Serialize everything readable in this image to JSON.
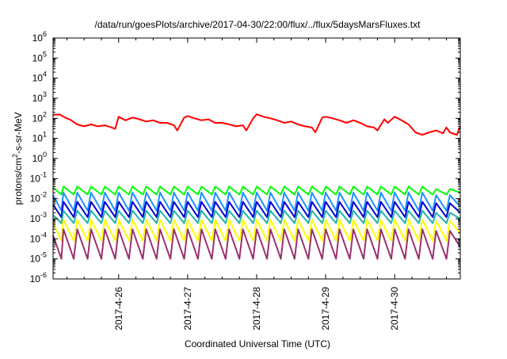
{
  "chart_data": {
    "type": "line",
    "title": "/data/run/goesPlots/archive/2017-04-30/22:00/flux/../flux/5daysMarsFluxes.txt",
    "xlabel": "Coordinated Universal Time (UTC)",
    "ylabel": "protons/cm²-s-sr-MeV",
    "ylabel_parts": [
      "protons/cm",
      "2",
      "-s-sr-MeV"
    ],
    "xscale": "linear",
    "yscale": "log",
    "xlim": [
      25.05,
      30.95
    ],
    "ylim": [
      -6,
      6
    ],
    "x_unit": "day of April 2017",
    "x_ticks": [
      {
        "x": 26,
        "label": "2017-4-26"
      },
      {
        "x": 27,
        "label": "2017-4-27"
      },
      {
        "x": 28,
        "label": "2017-4-28"
      },
      {
        "x": 29,
        "label": "2017-4-29"
      },
      {
        "x": 30,
        "label": "2017-4-30"
      }
    ],
    "y_ticks": [
      {
        "exp": -6,
        "base": "10",
        "sup": "-6"
      },
      {
        "exp": -5,
        "base": "10",
        "sup": "-5"
      },
      {
        "exp": -4,
        "base": "10",
        "sup": "-4"
      },
      {
        "exp": -3,
        "base": "10",
        "sup": "-3"
      },
      {
        "exp": -2,
        "base": "10",
        "sup": "-2"
      },
      {
        "exp": -1,
        "base": "10",
        "sup": "-1"
      },
      {
        "exp": 0,
        "base": "10",
        "sup": "0"
      },
      {
        "exp": 1,
        "base": "10",
        "sup": "1"
      },
      {
        "exp": 2,
        "base": "10",
        "sup": "2"
      },
      {
        "exp": 3,
        "base": "10",
        "sup": "3"
      },
      {
        "exp": 4,
        "base": "10",
        "sup": "4"
      },
      {
        "exp": 5,
        "base": "10",
        "sup": "5"
      },
      {
        "exp": 6,
        "base": "10",
        "sup": "6"
      }
    ],
    "grid": false,
    "legend": "none",
    "series": [
      {
        "color": "#ff0000",
        "x": [
          25.05,
          25.15,
          25.2,
          25.25,
          25.3,
          25.4,
          25.5,
          25.6,
          25.7,
          25.8,
          25.9,
          25.95,
          26.0,
          26.1,
          26.2,
          26.3,
          26.4,
          26.5,
          26.6,
          26.7,
          26.8,
          26.85,
          26.95,
          27.0,
          27.1,
          27.2,
          27.3,
          27.4,
          27.5,
          27.6,
          27.7,
          27.8,
          27.85,
          27.95,
          28.0,
          28.1,
          28.2,
          28.3,
          28.4,
          28.5,
          28.6,
          28.7,
          28.8,
          28.85,
          28.95,
          29.0,
          29.1,
          29.2,
          29.3,
          29.4,
          29.5,
          29.6,
          29.7,
          29.75,
          29.85,
          29.9,
          30.0,
          30.1,
          30.2,
          30.3,
          30.4,
          30.5,
          30.6,
          30.7,
          30.75,
          30.8,
          30.9,
          30.95
        ],
        "y": [
          150,
          155,
          120,
          100,
          85,
          50,
          40,
          50,
          40,
          45,
          35,
          30,
          120,
          80,
          110,
          90,
          70,
          80,
          60,
          60,
          45,
          25,
          110,
          130,
          100,
          80,
          90,
          60,
          60,
          50,
          40,
          45,
          25,
          100,
          160,
          120,
          100,
          80,
          60,
          70,
          50,
          40,
          35,
          20,
          110,
          120,
          100,
          80,
          60,
          80,
          60,
          40,
          35,
          25,
          90,
          60,
          120,
          80,
          50,
          20,
          15,
          20,
          25,
          18,
          35,
          20,
          15,
          40
        ]
      },
      {
        "color": "#00ff00",
        "x": [
          25.05,
          25.17,
          25.2,
          25.35,
          25.4,
          25.55,
          25.6,
          25.75,
          25.8,
          25.95,
          26.0,
          26.15,
          26.2,
          26.35,
          26.4,
          26.55,
          26.6,
          26.75,
          26.8,
          26.95,
          27.0,
          27.15,
          27.2,
          27.35,
          27.4,
          27.55,
          27.6,
          27.75,
          27.8,
          27.95,
          28.0,
          28.15,
          28.2,
          28.35,
          28.4,
          28.55,
          28.6,
          28.75,
          28.8,
          28.95,
          29.0,
          29.15,
          29.2,
          29.35,
          29.4,
          29.55,
          29.6,
          29.75,
          29.8,
          29.95,
          30.0,
          30.15,
          30.2,
          30.35,
          30.4,
          30.55,
          30.6,
          30.75,
          30.8,
          30.95
        ],
        "y": [
          0.035,
          0.016,
          0.04,
          0.016,
          0.04,
          0.016,
          0.04,
          0.016,
          0.04,
          0.016,
          0.04,
          0.016,
          0.04,
          0.016,
          0.04,
          0.016,
          0.04,
          0.016,
          0.04,
          0.016,
          0.04,
          0.016,
          0.04,
          0.016,
          0.04,
          0.016,
          0.04,
          0.016,
          0.04,
          0.016,
          0.04,
          0.016,
          0.04,
          0.016,
          0.04,
          0.016,
          0.04,
          0.016,
          0.04,
          0.016,
          0.04,
          0.016,
          0.04,
          0.016,
          0.04,
          0.016,
          0.04,
          0.016,
          0.04,
          0.016,
          0.04,
          0.016,
          0.04,
          0.016,
          0.04,
          0.016,
          0.03,
          0.016,
          0.03,
          0.02
        ]
      },
      {
        "color": "#1e90ff",
        "x": [
          25.05,
          25.17,
          25.2,
          25.35,
          25.4,
          25.55,
          25.6,
          25.75,
          25.8,
          25.95,
          26.0,
          26.15,
          26.2,
          26.35,
          26.4,
          26.55,
          26.6,
          26.75,
          26.8,
          26.95,
          27.0,
          27.15,
          27.2,
          27.35,
          27.4,
          27.55,
          27.6,
          27.75,
          27.8,
          27.95,
          28.0,
          28.15,
          28.2,
          28.35,
          28.4,
          28.55,
          28.6,
          28.75,
          28.8,
          28.95,
          29.0,
          29.15,
          29.2,
          29.35,
          29.4,
          29.55,
          29.6,
          29.75,
          29.8,
          29.95,
          30.0,
          30.15,
          30.2,
          30.35,
          30.4,
          30.55,
          30.6,
          30.75,
          30.8,
          30.95
        ],
        "y": [
          0.015,
          0.0025,
          0.02,
          0.0025,
          0.02,
          0.0025,
          0.02,
          0.0025,
          0.02,
          0.0025,
          0.02,
          0.0025,
          0.02,
          0.0025,
          0.02,
          0.0025,
          0.02,
          0.0025,
          0.02,
          0.0025,
          0.02,
          0.0025,
          0.02,
          0.0025,
          0.02,
          0.0025,
          0.02,
          0.0025,
          0.02,
          0.0025,
          0.02,
          0.0025,
          0.02,
          0.0025,
          0.02,
          0.0025,
          0.02,
          0.0025,
          0.02,
          0.0025,
          0.02,
          0.0025,
          0.02,
          0.0025,
          0.02,
          0.0025,
          0.02,
          0.0025,
          0.02,
          0.0025,
          0.02,
          0.0025,
          0.02,
          0.0025,
          0.02,
          0.0025,
          0.015,
          0.0025,
          0.015,
          0.004
        ]
      },
      {
        "color": "#0000cd",
        "x": [
          25.05,
          25.17,
          25.2,
          25.35,
          25.4,
          25.55,
          25.6,
          25.75,
          25.8,
          25.95,
          26.0,
          26.15,
          26.2,
          26.35,
          26.4,
          26.55,
          26.6,
          26.75,
          26.8,
          26.95,
          27.0,
          27.15,
          27.2,
          27.35,
          27.4,
          27.55,
          27.6,
          27.75,
          27.8,
          27.95,
          28.0,
          28.15,
          28.2,
          28.35,
          28.4,
          28.55,
          28.6,
          28.75,
          28.8,
          28.95,
          29.0,
          29.15,
          29.2,
          29.35,
          29.4,
          29.55,
          29.6,
          29.75,
          29.8,
          29.95,
          30.0,
          30.15,
          30.2,
          30.35,
          30.4,
          30.55,
          30.6,
          30.75,
          30.8,
          30.95
        ],
        "y": [
          0.005,
          0.0012,
          0.007,
          0.0012,
          0.007,
          0.0012,
          0.007,
          0.0012,
          0.007,
          0.0012,
          0.007,
          0.0012,
          0.007,
          0.0012,
          0.007,
          0.0012,
          0.007,
          0.0012,
          0.007,
          0.0012,
          0.007,
          0.0012,
          0.007,
          0.0012,
          0.007,
          0.0012,
          0.007,
          0.0012,
          0.007,
          0.0012,
          0.007,
          0.0012,
          0.007,
          0.0012,
          0.007,
          0.0012,
          0.007,
          0.0012,
          0.007,
          0.0012,
          0.007,
          0.0012,
          0.007,
          0.0012,
          0.007,
          0.0012,
          0.007,
          0.0012,
          0.007,
          0.0012,
          0.007,
          0.0012,
          0.007,
          0.0012,
          0.007,
          0.0012,
          0.006,
          0.0012,
          0.006,
          0.002
        ]
      },
      {
        "color": "#20b2aa",
        "x": [
          25.05,
          25.17,
          25.2,
          25.35,
          25.4,
          25.55,
          25.6,
          25.75,
          25.8,
          25.95,
          26.0,
          26.15,
          26.2,
          26.35,
          26.4,
          26.55,
          26.6,
          26.75,
          26.8,
          26.95,
          27.0,
          27.15,
          27.2,
          27.35,
          27.4,
          27.55,
          27.6,
          27.75,
          27.8,
          27.95,
          28.0,
          28.15,
          28.2,
          28.35,
          28.4,
          28.55,
          28.6,
          28.75,
          28.8,
          28.95,
          29.0,
          29.15,
          29.2,
          29.35,
          29.4,
          29.55,
          29.6,
          29.75,
          29.8,
          29.95,
          30.0,
          30.15,
          30.2,
          30.35,
          30.4,
          30.55,
          30.6,
          30.75,
          30.8,
          30.95
        ],
        "y": [
          0.0015,
          0.0006,
          0.0025,
          0.0006,
          0.0025,
          0.0006,
          0.0025,
          0.0006,
          0.0025,
          0.0006,
          0.0025,
          0.0006,
          0.0025,
          0.0006,
          0.0025,
          0.0006,
          0.0025,
          0.0006,
          0.0025,
          0.0006,
          0.0025,
          0.0006,
          0.0025,
          0.0006,
          0.0025,
          0.0006,
          0.0025,
          0.0006,
          0.0025,
          0.0006,
          0.0025,
          0.0006,
          0.0025,
          0.0006,
          0.0025,
          0.0006,
          0.0025,
          0.0006,
          0.0025,
          0.0006,
          0.0025,
          0.0006,
          0.0025,
          0.0006,
          0.0025,
          0.0006,
          0.0025,
          0.0006,
          0.0025,
          0.0006,
          0.0025,
          0.0006,
          0.0025,
          0.0006,
          0.0025,
          0.0006,
          0.002,
          0.0006,
          0.002,
          0.001
        ]
      },
      {
        "color": "#ffff00",
        "x": [
          25.05,
          25.17,
          25.2,
          25.35,
          25.4,
          25.55,
          25.6,
          25.75,
          25.8,
          25.95,
          26.0,
          26.15,
          26.2,
          26.35,
          26.4,
          26.55,
          26.6,
          26.75,
          26.8,
          26.95,
          27.0,
          27.15,
          27.2,
          27.35,
          27.4,
          27.55,
          27.6,
          27.75,
          27.8,
          27.95,
          28.0,
          28.15,
          28.2,
          28.35,
          28.4,
          28.55,
          28.6,
          28.75,
          28.8,
          28.95,
          29.0,
          29.15,
          29.2,
          29.35,
          29.4,
          29.55,
          29.6,
          29.75,
          29.8,
          29.95,
          30.0,
          30.15,
          30.2,
          30.35,
          30.4,
          30.55,
          30.6,
          30.75,
          30.8,
          30.95
        ],
        "y": [
          0.0006,
          8e-05,
          0.0009,
          8e-05,
          0.0009,
          8e-05,
          0.0009,
          8e-05,
          0.0009,
          8e-05,
          0.0009,
          8e-05,
          0.0009,
          8e-05,
          0.0009,
          8e-05,
          0.0009,
          8e-05,
          0.0009,
          8e-05,
          0.0009,
          8e-05,
          0.0009,
          8e-05,
          0.0009,
          8e-05,
          0.0009,
          8e-05,
          0.0009,
          8e-05,
          0.0009,
          8e-05,
          0.0009,
          8e-05,
          0.0009,
          8e-05,
          0.0009,
          8e-05,
          0.0009,
          8e-05,
          0.0009,
          8e-05,
          0.0009,
          8e-05,
          0.0009,
          8e-05,
          0.0009,
          8e-05,
          0.0009,
          8e-05,
          0.0009,
          8e-05,
          0.0009,
          8e-05,
          0.0009,
          8e-05,
          0.0008,
          8e-05,
          0.0008,
          0.0002
        ]
      },
      {
        "color": "#9b3070",
        "x": [
          25.05,
          25.17,
          25.2,
          25.35,
          25.4,
          25.55,
          25.6,
          25.75,
          25.8,
          25.95,
          26.0,
          26.15,
          26.2,
          26.35,
          26.4,
          26.55,
          26.6,
          26.75,
          26.8,
          26.95,
          27.0,
          27.15,
          27.2,
          27.35,
          27.4,
          27.55,
          27.6,
          27.75,
          27.8,
          27.95,
          28.0,
          28.15,
          28.2,
          28.35,
          28.4,
          28.55,
          28.6,
          28.75,
          28.8,
          28.95,
          29.0,
          29.15,
          29.2,
          29.35,
          29.4,
          29.55,
          29.6,
          29.75,
          29.8,
          29.95,
          30.0,
          30.15,
          30.2,
          30.35,
          30.4,
          30.55,
          30.6,
          30.75,
          30.8,
          30.95
        ],
        "y": [
          0.00015,
          1e-05,
          0.0003,
          1e-05,
          0.0003,
          1e-05,
          0.0003,
          1e-05,
          0.0003,
          1e-05,
          0.0003,
          1e-05,
          0.0003,
          1e-05,
          0.0003,
          1e-05,
          0.0003,
          1e-05,
          0.0003,
          1e-05,
          0.0003,
          1e-05,
          0.0003,
          1e-05,
          0.0003,
          1e-05,
          0.0003,
          1e-05,
          0.0003,
          1e-05,
          0.0003,
          1e-05,
          0.0003,
          1e-05,
          0.0003,
          1e-05,
          0.0003,
          1e-05,
          0.0003,
          1e-05,
          0.0003,
          1e-05,
          0.0003,
          1e-05,
          0.0003,
          1e-05,
          0.0003,
          1e-05,
          0.0003,
          1e-05,
          0.0003,
          1e-05,
          0.0003,
          1e-05,
          0.0003,
          1e-05,
          0.00025,
          1e-05,
          0.00025,
          4e-05
        ]
      }
    ]
  }
}
